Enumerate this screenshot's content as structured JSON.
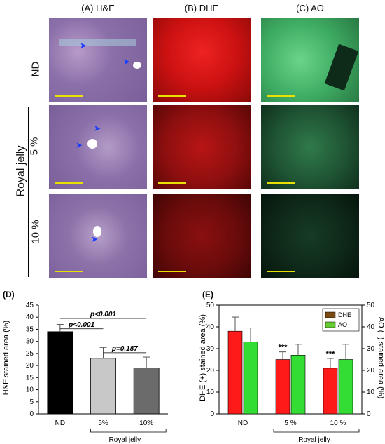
{
  "columns": [
    "(A) H&E",
    "(B) DHE",
    "(C) AO"
  ],
  "rows": [
    "ND",
    "5 %",
    "10 %"
  ],
  "group_label": "Royal jelly",
  "panel_d": {
    "letter": "(D)",
    "ylabel": "H&E stained area (%)",
    "categories": [
      "ND",
      "5%",
      "10%"
    ],
    "values": [
      34,
      23,
      19
    ],
    "errors": [
      3,
      4.5,
      4.5
    ],
    "colors": [
      "#000000",
      "#c8c8c8",
      "#6b6b6b"
    ],
    "yticks": [
      0,
      5,
      10,
      15,
      20,
      25,
      30,
      35,
      40,
      45
    ],
    "ylim": [
      0,
      45
    ],
    "annotations": [
      "p<0.001",
      "p<0.001",
      "p=0.187"
    ],
    "group_label": "Royal jelly"
  },
  "panel_e": {
    "letter": "(E)",
    "ylabel_left": "DHE (+) stained area (%)",
    "ylabel_right": "AO (+) stained area (%)",
    "categories": [
      "ND",
      "5 %",
      "10 %"
    ],
    "yticks": [
      0,
      10,
      20,
      30,
      40,
      50
    ],
    "ylim": [
      0,
      50
    ],
    "legend": [
      "DHE",
      "AO"
    ],
    "series_values": [
      [
        38,
        25,
        21
      ],
      [
        33,
        27,
        25
      ]
    ],
    "series_errors": [
      [
        6.5,
        3.5,
        4.5
      ],
      [
        6.5,
        5,
        7
      ]
    ],
    "series_colors": [
      "#ff1a1a",
      "#33dd33"
    ],
    "legend_swatch_colors": [
      "#7a4a12",
      "#66cc33"
    ],
    "significance": [
      "",
      "***",
      "***"
    ],
    "group_label": "Royal jelly"
  }
}
